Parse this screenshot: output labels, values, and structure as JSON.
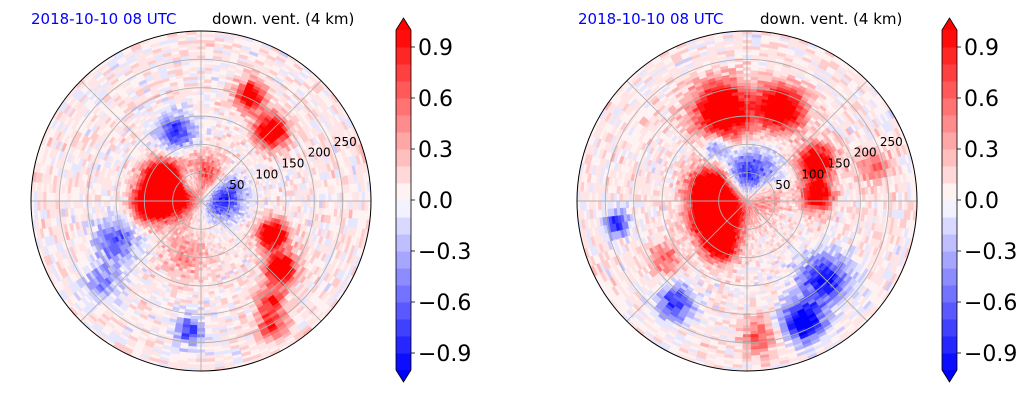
{
  "chart_data": [
    {
      "type": "heatmap",
      "subtype": "polar-filled-contour",
      "title_left": "2018-10-10 08 UTC",
      "title_right": "down. vent. (4 km)",
      "title_left_color": "#0000ff",
      "radial_ticks": [
        "50",
        "100",
        "150",
        "200",
        "250"
      ],
      "radial_tick_values": [
        50,
        100,
        150,
        200,
        250
      ],
      "radial_max": 300,
      "grid": true,
      "colormap": "bwr",
      "colorbar": {
        "ticks": [
          "0.9",
          "0.6",
          "0.3",
          "0.0",
          "−0.3",
          "−0.6",
          "−0.9"
        ],
        "tick_values": [
          0.9,
          0.6,
          0.3,
          0.0,
          -0.3,
          -0.6,
          -0.9
        ],
        "range": [
          -1.0,
          1.0
        ],
        "levels": 21,
        "extend": "both"
      },
      "features": [
        {
          "r": 55,
          "theta": 170,
          "sr": 28,
          "sa": 28,
          "v": 0.95
        },
        {
          "r": 80,
          "theta": 150,
          "sr": 22,
          "sa": 22,
          "v": 0.9
        },
        {
          "r": 95,
          "theta": 185,
          "sr": 20,
          "sa": 20,
          "v": 0.85
        },
        {
          "r": 35,
          "theta": 80,
          "sr": 15,
          "sa": 30,
          "v": 0.9
        },
        {
          "r": 35,
          "theta": 20,
          "sr": 12,
          "sa": 30,
          "v": -0.85
        },
        {
          "r": 40,
          "theta": 120,
          "sr": 12,
          "sa": 20,
          "v": -0.8
        },
        {
          "r": 175,
          "theta": 45,
          "sr": 20,
          "sa": 20,
          "v": 0.85
        },
        {
          "r": 205,
          "theta": 65,
          "sr": 18,
          "sa": 15,
          "v": 0.75
        },
        {
          "r": 140,
          "theta": -25,
          "sr": 18,
          "sa": 20,
          "v": 0.95
        },
        {
          "r": 185,
          "theta": -40,
          "sr": 18,
          "sa": 15,
          "v": 0.95
        },
        {
          "r": 165,
          "theta": 205,
          "sr": 25,
          "sa": 30,
          "v": -0.45
        },
        {
          "r": 225,
          "theta": 220,
          "sr": 18,
          "sa": 25,
          "v": -0.35
        },
        {
          "r": 230,
          "theta": 265,
          "sr": 15,
          "sa": 20,
          "v": -0.5
        },
        {
          "r": 215,
          "theta": 305,
          "sr": 18,
          "sa": 20,
          "v": 0.5
        },
        {
          "r": 130,
          "theta": 110,
          "sr": 20,
          "sa": 25,
          "v": -0.55
        },
        {
          "r": 255,
          "theta": 300,
          "sr": 15,
          "sa": 20,
          "v": 0.5
        },
        {
          "r": 100,
          "theta": 255,
          "sr": 25,
          "sa": 30,
          "v": 0.25
        }
      ]
    },
    {
      "type": "heatmap",
      "subtype": "polar-filled-contour",
      "title_left": "2018-10-10 08 UTC",
      "title_right": "down. vent. (4 km)",
      "title_left_color": "#0000ff",
      "radial_ticks": [
        "50",
        "100",
        "150",
        "200",
        "250"
      ],
      "radial_tick_values": [
        50,
        100,
        150,
        200,
        250
      ],
      "radial_max": 300,
      "grid": true,
      "colormap": "bwr",
      "colorbar": {
        "ticks": [
          "0.9",
          "0.6",
          "0.3",
          "0.0",
          "−0.3",
          "−0.6",
          "−0.9"
        ],
        "tick_values": [
          0.9,
          0.6,
          0.3,
          0.0,
          -0.3,
          -0.6,
          -0.9
        ],
        "range": [
          -1.0,
          1.0
        ],
        "levels": 21,
        "extend": "both"
      },
      "features": [
        {
          "r": 40,
          "theta": 190,
          "sr": 28,
          "sa": 35,
          "v": 0.95
        },
        {
          "r": 70,
          "theta": 210,
          "sr": 25,
          "sa": 25,
          "v": 0.95
        },
        {
          "r": 70,
          "theta": 160,
          "sr": 25,
          "sa": 25,
          "v": 0.9
        },
        {
          "r": 90,
          "theta": 240,
          "sr": 20,
          "sa": 20,
          "v": 0.85
        },
        {
          "r": 165,
          "theta": 105,
          "sr": 35,
          "sa": 30,
          "v": 0.95
        },
        {
          "r": 175,
          "theta": 70,
          "sr": 28,
          "sa": 25,
          "v": 0.9
        },
        {
          "r": 140,
          "theta": 30,
          "sr": 22,
          "sa": 20,
          "v": 0.8
        },
        {
          "r": 125,
          "theta": 5,
          "sr": 20,
          "sa": 15,
          "v": 0.75
        },
        {
          "r": 30,
          "theta": 80,
          "sr": 15,
          "sa": 40,
          "v": -0.9
        },
        {
          "r": 30,
          "theta": 20,
          "sr": 10,
          "sa": 30,
          "v": 0.7
        },
        {
          "r": 195,
          "theta": -45,
          "sr": 30,
          "sa": 25,
          "v": -0.65
        },
        {
          "r": 235,
          "theta": -65,
          "sr": 25,
          "sa": 25,
          "v": -0.8
        },
        {
          "r": 220,
          "theta": 235,
          "sr": 22,
          "sa": 25,
          "v": -0.55
        },
        {
          "r": 240,
          "theta": 275,
          "sr": 18,
          "sa": 25,
          "v": 0.4
        },
        {
          "r": 235,
          "theta": 190,
          "sr": 15,
          "sa": 15,
          "v": -0.6
        },
        {
          "r": 180,
          "theta": 215,
          "sr": 20,
          "sa": 20,
          "v": 0.35
        },
        {
          "r": 230,
          "theta": 15,
          "sr": 20,
          "sa": 20,
          "v": 0.35
        },
        {
          "r": 110,
          "theta": 120,
          "sr": 15,
          "sa": 15,
          "v": -0.4
        }
      ]
    }
  ]
}
